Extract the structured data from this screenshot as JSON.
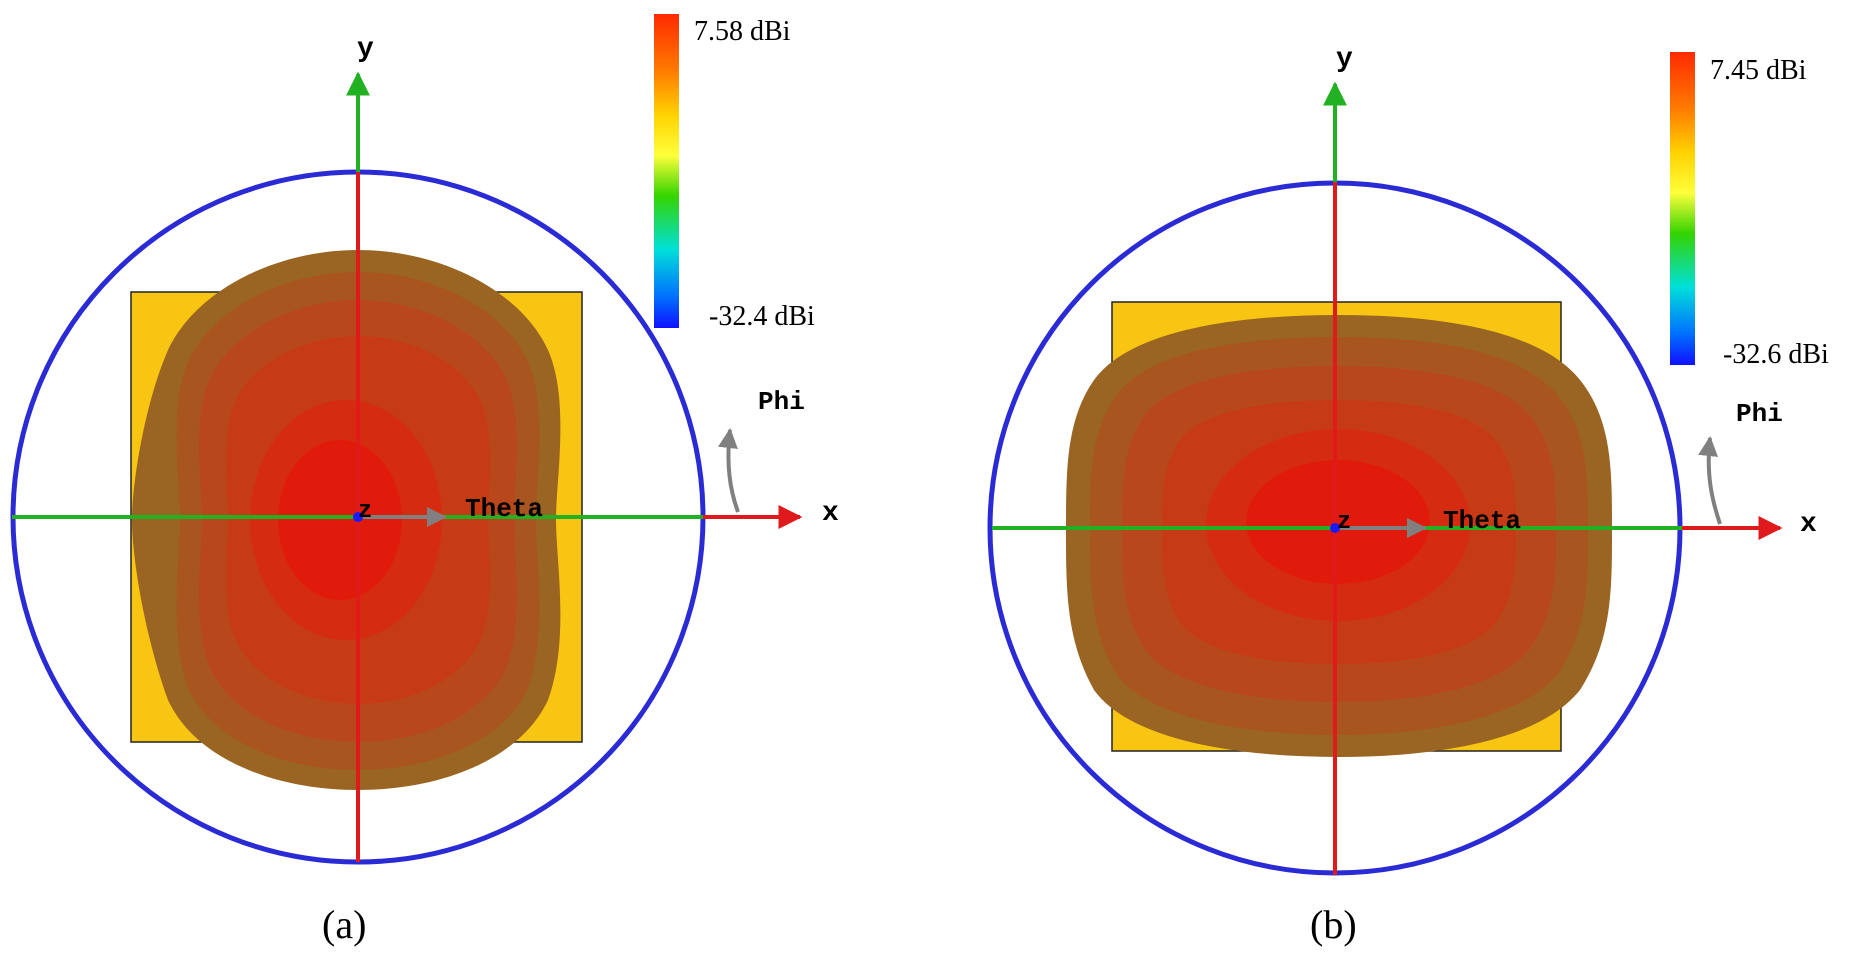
{
  "panels": [
    {
      "id": "a",
      "caption": "(a)",
      "colorbar": {
        "max_label": "7.58 dBi",
        "min_label": "-32.4 dBi"
      },
      "axis_labels": {
        "x": "x",
        "y": "y",
        "z": "z",
        "theta": "Theta",
        "phi": "Phi"
      },
      "pattern_shape": "tall"
    },
    {
      "id": "b",
      "caption": "(b)",
      "colorbar": {
        "max_label": "7.45 dBi",
        "min_label": "-32.6 dBi"
      },
      "axis_labels": {
        "x": "x",
        "y": "y",
        "z": "z",
        "theta": "Theta",
        "phi": "Phi"
      },
      "pattern_shape": "wide"
    }
  ],
  "colors": {
    "sphere": "#2b2bd6",
    "x_axis": "#e0191c",
    "y_axis": "#22b122",
    "patch": "#f7c512",
    "lobe_outer": "#9a6522",
    "lobe_inner": "#e01b0c",
    "theta_arrow": "#808080"
  },
  "colorbar_gradient": [
    "#ff2a00",
    "#ff7a00",
    "#ffd200",
    "#ffff3a",
    "#34d400",
    "#00e0d8",
    "#0070ff",
    "#1010ff"
  ]
}
